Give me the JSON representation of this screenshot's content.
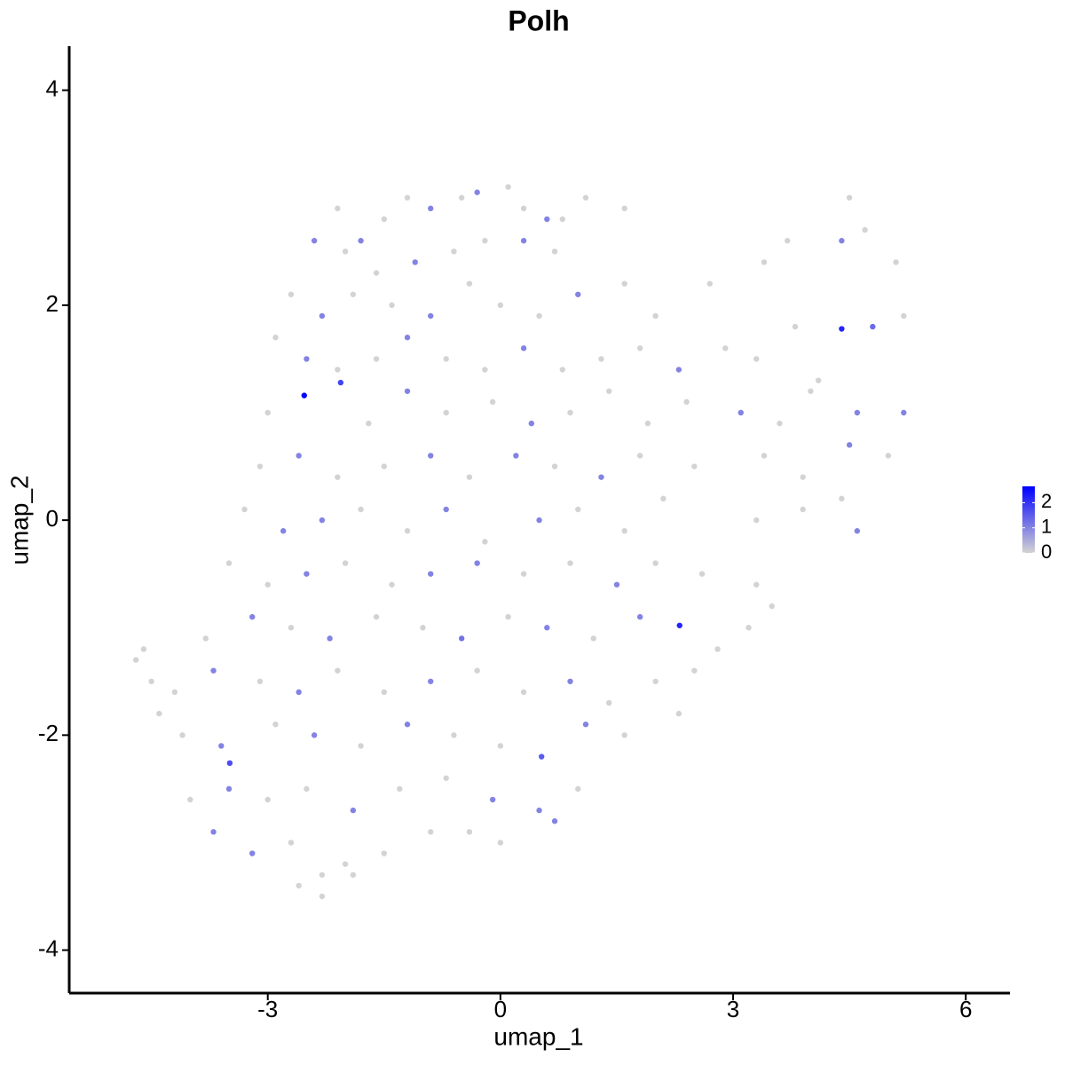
{
  "chart_data": {
    "type": "scatter",
    "title": "Polh",
    "x_label": "umap_1",
    "y_label": "umap_2",
    "x": [
      -2.1,
      -1.8,
      -1.5,
      -1.2,
      -0.9,
      -0.5,
      -0.3,
      0.1,
      0.3,
      0.6,
      0.8,
      1.1,
      1.6,
      -2.4,
      -2.0,
      -1.6,
      -1.1,
      -0.6,
      -0.2,
      0.3,
      0.7,
      -2.7,
      -2.3,
      -1.9,
      -1.4,
      -0.9,
      -0.4,
      0.0,
      0.5,
      1.0,
      1.6,
      2.0,
      2.7,
      3.4,
      3.7,
      4.4,
      4.7,
      5.1,
      4.5,
      -2.9,
      -2.5,
      -2.1,
      -1.6,
      -1.2,
      -0.7,
      -0.2,
      0.3,
      0.8,
      1.3,
      1.8,
      2.3,
      2.9,
      3.3,
      3.8,
      4.4,
      4.8,
      5.2,
      4.1,
      -3.0,
      -2.53,
      -2.06,
      -1.7,
      -1.2,
      -0.7,
      -0.1,
      0.4,
      0.9,
      1.4,
      1.9,
      2.4,
      3.1,
      3.6,
      4.0,
      4.6,
      5.2,
      -3.1,
      -2.6,
      -2.1,
      -1.5,
      -0.9,
      -0.4,
      0.2,
      0.7,
      1.3,
      1.8,
      2.5,
      3.4,
      3.9,
      4.5,
      5.0,
      -3.3,
      -2.8,
      -2.3,
      -1.8,
      -1.2,
      -0.7,
      -0.2,
      0.5,
      1.0,
      1.6,
      2.1,
      3.3,
      3.9,
      4.4,
      4.6,
      -3.5,
      -3.0,
      -2.5,
      -2.0,
      -1.4,
      -0.9,
      -0.3,
      0.3,
      0.9,
      1.5,
      2.0,
      2.6,
      3.3,
      3.5,
      -3.8,
      -3.2,
      -2.7,
      -2.2,
      -1.6,
      -1.0,
      -0.5,
      0.1,
      0.6,
      1.2,
      1.8,
      2.31,
      2.8,
      3.2,
      -4.7,
      -4.6,
      -4.5,
      -4.4,
      -4.2,
      -3.7,
      -3.1,
      -2.6,
      -2.1,
      -1.5,
      -0.9,
      -0.3,
      0.3,
      0.9,
      1.4,
      2.0,
      2.5,
      -4.1,
      -3.6,
      -3.49,
      -2.9,
      -2.4,
      -1.8,
      -1.2,
      -0.6,
      0.0,
      0.53,
      1.1,
      1.6,
      2.3,
      -4.0,
      -3.5,
      -3.0,
      -2.5,
      -1.9,
      -1.3,
      -0.7,
      -0.1,
      0.5,
      1.0,
      -3.7,
      -3.2,
      -2.7,
      -2.3,
      -2.0,
      -1.5,
      -0.9,
      -0.4,
      0.0,
      0.7,
      -2.6,
      -2.3,
      -1.9
    ],
    "y": [
      2.9,
      2.6,
      2.8,
      3.0,
      2.9,
      3.0,
      3.05,
      3.1,
      2.9,
      2.8,
      2.8,
      3.0,
      2.9,
      2.6,
      2.5,
      2.3,
      2.4,
      2.5,
      2.6,
      2.6,
      2.5,
      2.1,
      1.9,
      2.1,
      2.0,
      1.9,
      2.2,
      2.0,
      1.9,
      2.1,
      2.2,
      1.9,
      2.2,
      2.4,
      2.6,
      2.6,
      2.7,
      2.4,
      3.0,
      1.7,
      1.5,
      1.4,
      1.5,
      1.7,
      1.5,
      1.4,
      1.6,
      1.4,
      1.5,
      1.6,
      1.4,
      1.6,
      1.5,
      1.8,
      1.78,
      1.8,
      1.9,
      1.3,
      1.0,
      1.16,
      1.28,
      0.9,
      1.2,
      1.0,
      1.1,
      0.9,
      1.0,
      1.2,
      0.9,
      1.1,
      1.0,
      0.9,
      1.2,
      1.0,
      1.0,
      0.5,
      0.6,
      0.4,
      0.5,
      0.6,
      0.4,
      0.6,
      0.5,
      0.4,
      0.6,
      0.5,
      0.6,
      0.4,
      0.7,
      0.6,
      0.1,
      -0.1,
      0.0,
      0.1,
      -0.1,
      0.1,
      -0.2,
      0.0,
      0.1,
      -0.1,
      0.2,
      0.0,
      0.1,
      0.2,
      -0.1,
      -0.4,
      -0.6,
      -0.5,
      -0.4,
      -0.6,
      -0.5,
      -0.4,
      -0.5,
      -0.4,
      -0.6,
      -0.4,
      -0.5,
      -0.6,
      -0.8,
      -1.1,
      -0.9,
      -1.0,
      -1.1,
      -0.9,
      -1.0,
      -1.1,
      -0.9,
      -1.0,
      -1.1,
      -0.9,
      -0.98,
      -1.2,
      -1.0,
      -1.3,
      -1.2,
      -1.5,
      -1.8,
      -1.6,
      -1.4,
      -1.5,
      -1.6,
      -1.4,
      -1.6,
      -1.5,
      -1.4,
      -1.6,
      -1.5,
      -1.7,
      -1.5,
      -1.4,
      -2.0,
      -2.1,
      -2.26,
      -1.9,
      -2.0,
      -2.1,
      -1.9,
      -2.0,
      -2.1,
      -2.2,
      -1.9,
      -2.0,
      -1.8,
      -2.6,
      -2.5,
      -2.6,
      -2.5,
      -2.7,
      -2.5,
      -2.4,
      -2.6,
      -2.7,
      -2.5,
      -2.9,
      -3.1,
      -3.0,
      -3.3,
      -3.2,
      -3.1,
      -2.9,
      -2.9,
      -3.0,
      -2.8,
      -3.4,
      -3.5,
      -3.3
    ],
    "values": [
      0,
      1,
      0,
      0,
      1,
      0,
      1,
      0,
      0,
      1,
      0,
      0,
      0,
      1,
      0,
      0,
      1,
      0,
      0,
      1,
      0,
      0,
      1,
      0,
      0,
      1,
      0,
      0,
      0,
      1,
      0,
      0,
      0,
      0,
      0,
      1,
      0,
      0,
      0,
      0,
      1,
      0,
      0,
      1,
      0,
      0,
      1,
      0,
      0,
      0,
      1,
      0,
      0,
      0,
      2.2,
      1.3,
      0,
      0,
      0,
      2.6,
      1.8,
      0,
      1,
      0,
      0,
      1,
      0,
      0,
      0,
      0,
      1,
      0,
      0,
      1,
      1,
      0,
      1,
      0,
      0,
      1,
      0,
      1,
      0,
      1,
      0,
      0,
      0,
      0,
      1,
      0,
      0,
      1,
      1,
      0,
      0,
      1,
      0,
      1,
      0,
      0,
      0,
      0,
      0,
      0,
      1,
      0,
      0,
      1,
      0,
      0,
      1,
      1,
      0,
      0,
      1,
      0,
      0,
      0,
      0,
      0,
      1,
      0,
      1,
      0,
      0,
      1.2,
      0,
      1,
      0,
      1,
      2.2,
      0,
      0,
      0,
      0,
      0,
      0,
      0,
      1,
      0,
      1,
      0,
      0,
      1,
      0,
      0,
      1,
      0,
      0,
      0,
      0,
      1,
      1.7,
      0,
      1,
      0,
      1,
      0,
      0,
      1.5,
      1,
      0,
      0,
      0,
      1,
      0,
      0,
      1,
      0,
      0,
      1,
      1,
      0,
      1,
      1,
      0,
      0,
      0,
      0,
      0,
      0,
      0,
      1,
      0,
      0,
      0
    ],
    "color_low": "#d3d3d3",
    "color_high": "#0000ff",
    "color_lim": [
      0,
      2.65
    ],
    "color_ticks": [
      0,
      1,
      2
    ],
    "xlim": [
      -5.56,
      6.57
    ],
    "xticks": [
      -3,
      0,
      3,
      6
    ],
    "ylim": [
      -4.4,
      4.41
    ],
    "yticks": [
      -4,
      -2,
      0,
      2,
      4
    ]
  }
}
